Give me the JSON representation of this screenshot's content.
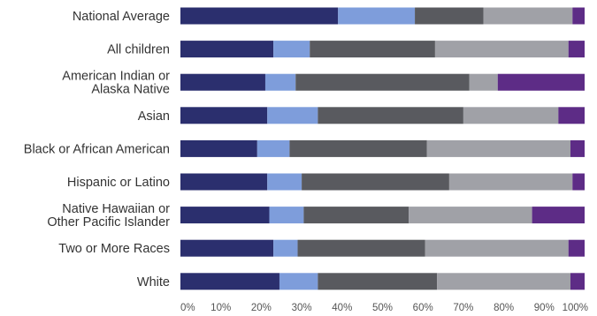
{
  "chart_data": {
    "type": "bar",
    "orientation": "horizontal",
    "stacked": true,
    "categories": [
      [
        "National Average"
      ],
      [
        "All children"
      ],
      [
        "American Indian or",
        "Alaska Native"
      ],
      [
        "Asian"
      ],
      [
        "Black or African American"
      ],
      [
        "Hispanic or Latino"
      ],
      [
        "Native Hawaiian or",
        "Other Pacific Islander"
      ],
      [
        "Two or More Races"
      ],
      [
        "White"
      ]
    ],
    "segments": [
      [
        39.0,
        19.0,
        17.0,
        22.0,
        3.5
      ],
      [
        23.0,
        9.0,
        31.0,
        33.0,
        4.0
      ],
      [
        21.0,
        7.5,
        43.0,
        7.0,
        21.5
      ],
      [
        21.5,
        12.5,
        36.0,
        23.5,
        6.5
      ],
      [
        19.0,
        8.0,
        34.0,
        35.5,
        3.5
      ],
      [
        21.5,
        8.5,
        36.5,
        30.5,
        3.0
      ],
      [
        22.0,
        8.5,
        26.0,
        30.5,
        13.0
      ],
      [
        23.0,
        6.0,
        31.5,
        35.5,
        4.0
      ],
      [
        24.5,
        9.5,
        29.5,
        33.0,
        3.5
      ]
    ],
    "colors": [
      "#2b2f6e",
      "#7e9ddb",
      "#595a5f",
      "#a0a1a7",
      "#5d2c86"
    ],
    "xlim": [
      0,
      100
    ],
    "xticks": [
      "0%",
      "10%",
      "20%",
      "30%",
      "40%",
      "50%",
      "60%",
      "70%",
      "80%",
      "90%",
      "100%"
    ],
    "xlabel": "",
    "ylabel": "",
    "title": "",
    "grid": false
  }
}
